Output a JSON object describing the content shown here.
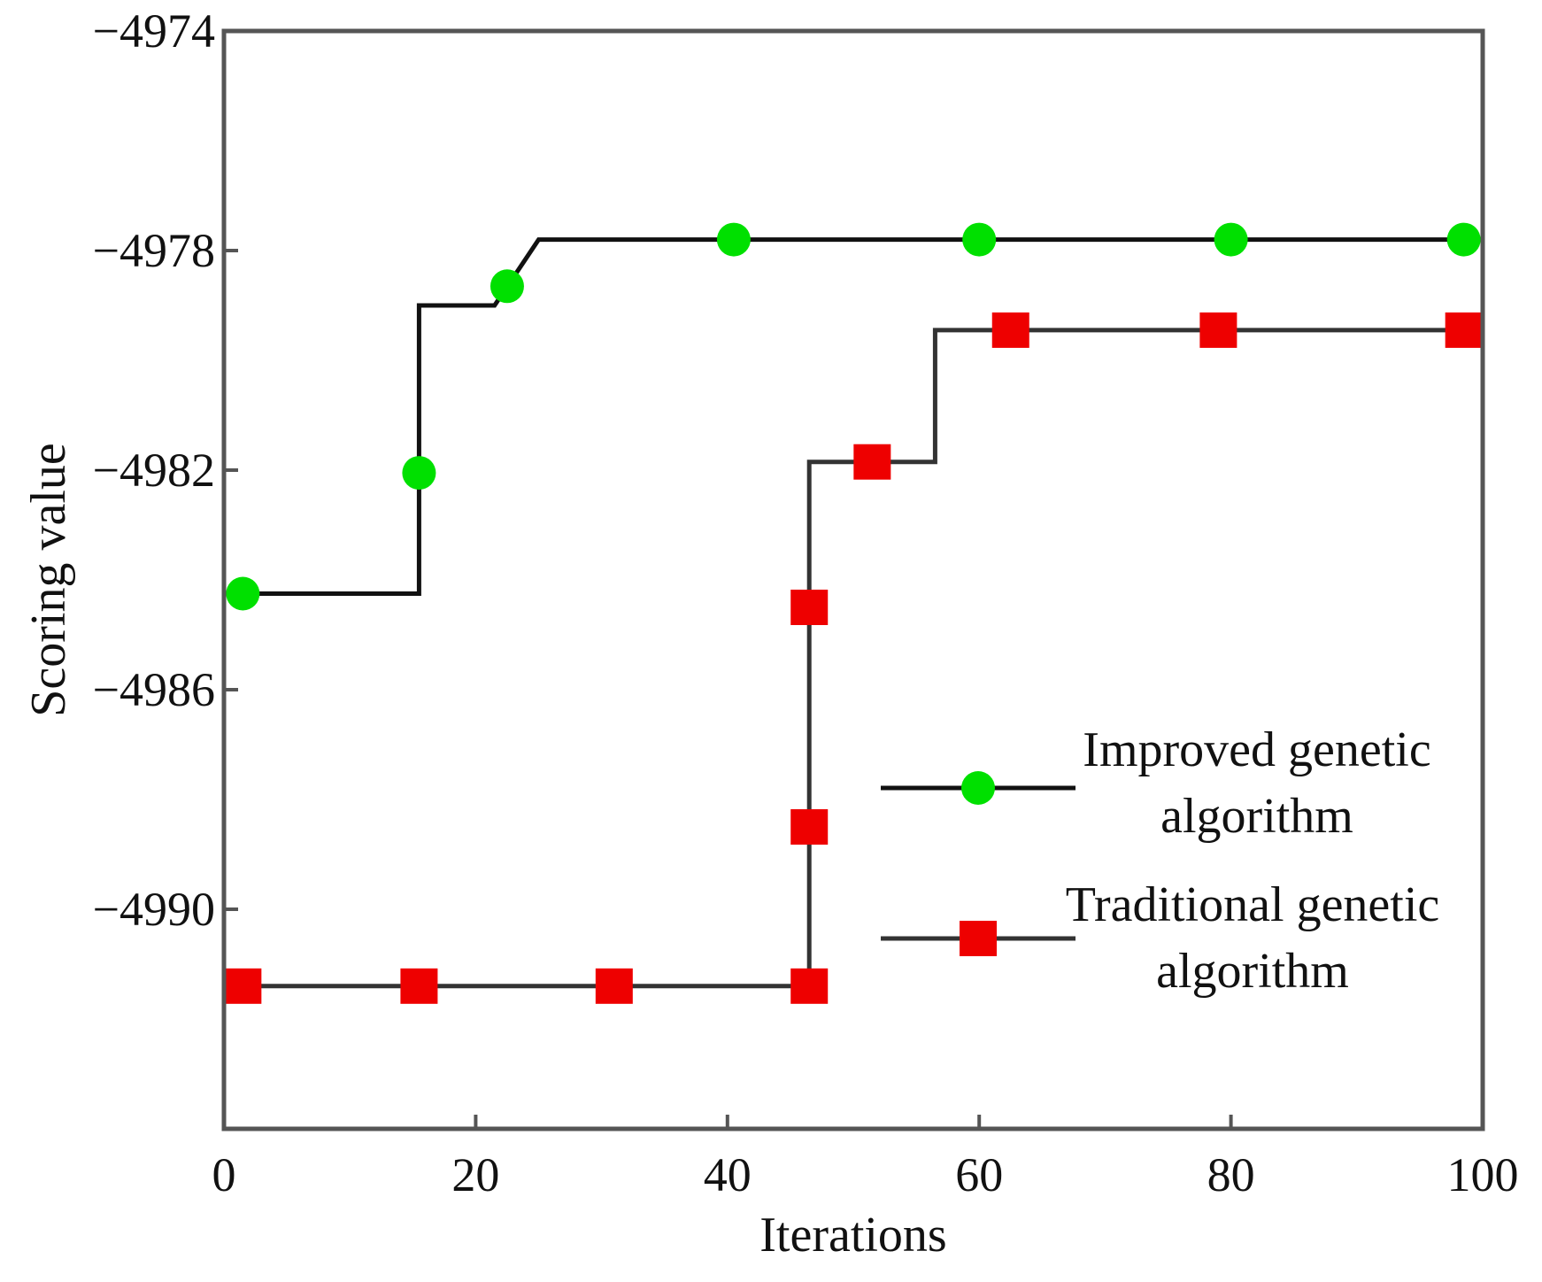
{
  "chart_data": {
    "type": "line",
    "title": "",
    "xlabel": "Iterations",
    "ylabel": "Scoring value",
    "xlim": [
      0,
      100
    ],
    "ylim": [
      -4994,
      -4974
    ],
    "xticks": [
      0,
      20,
      40,
      60,
      80,
      100
    ],
    "xtick_labels": [
      "0",
      "20",
      "40",
      "60",
      "80",
      "100"
    ],
    "yticks": [
      -4974,
      -4978,
      -4982,
      -4986,
      -4990
    ],
    "ytick_labels": [
      "−4974",
      "−4978",
      "−4982",
      "−4986",
      "−4990"
    ],
    "grid": false,
    "legend_position": "lower-right",
    "series": [
      {
        "name": "Improved genetic algorithm",
        "legend_lines": [
          "Improved genetic",
          "algorithm"
        ],
        "marker": "circle",
        "color": "#00e000",
        "line_color": "#111111",
        "line_path": [
          [
            1.5,
            -4984.25
          ],
          [
            15.5,
            -4984.25
          ],
          [
            15.5,
            -4979.0
          ],
          [
            21.5,
            -4979.0
          ],
          [
            25,
            -4977.8
          ],
          [
            100,
            -4977.8
          ]
        ],
        "markers": [
          [
            1.5,
            -4984.25
          ],
          [
            15.5,
            -4982.05
          ],
          [
            22.5,
            -4978.65
          ],
          [
            40.5,
            -4977.8
          ],
          [
            60,
            -4977.8
          ],
          [
            80,
            -4977.8
          ],
          [
            98.5,
            -4977.8
          ]
        ]
      },
      {
        "name": "Traditional genetic algorithm",
        "legend_lines": [
          "Traditional genetic",
          "algorithm"
        ],
        "marker": "square",
        "color": "#ee0000",
        "line_color": "#333333",
        "line_path": [
          [
            1,
            -4991.4
          ],
          [
            46.5,
            -4991.4
          ],
          [
            46.5,
            -4981.85
          ],
          [
            56.5,
            -4981.85
          ],
          [
            56.5,
            -4979.45
          ],
          [
            100,
            -4979.45
          ]
        ],
        "markers": [
          [
            1.5,
            -4991.4
          ],
          [
            15.5,
            -4991.4
          ],
          [
            31,
            -4991.4
          ],
          [
            46.5,
            -4991.4
          ],
          [
            46.5,
            -4988.5
          ],
          [
            46.5,
            -4984.5
          ],
          [
            51.5,
            -4981.85
          ],
          [
            62.5,
            -4979.45
          ],
          [
            79,
            -4979.45
          ],
          [
            98.5,
            -4979.45
          ]
        ]
      }
    ]
  }
}
